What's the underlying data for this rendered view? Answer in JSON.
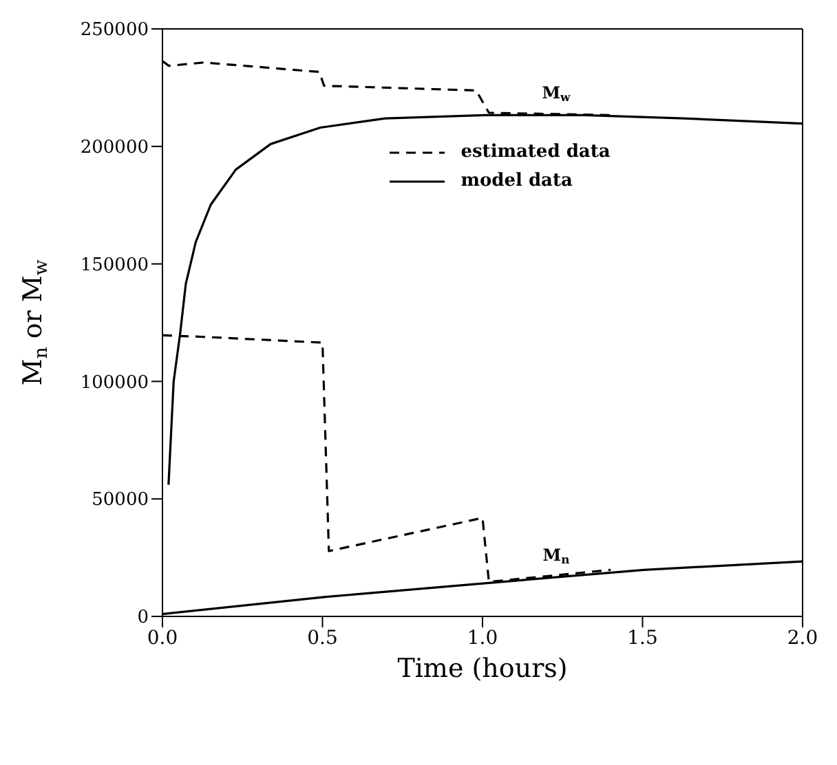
{
  "chart_data": {
    "type": "line",
    "xlabel": "Time (hours)",
    "ylabel": "M$_{n}$ or M$_{w}$",
    "xlim": [
      0,
      2
    ],
    "xticks": [
      {
        "value": 0,
        "label": "0.0"
      },
      {
        "value": 0.5,
        "label": "0.5"
      },
      {
        "value": 1,
        "label": "1.0"
      },
      {
        "value": 1.5,
        "label": "1.5"
      },
      {
        "value": 2,
        "label": "2.0"
      }
    ],
    "ylim": [
      0,
      250000
    ],
    "yticks": [
      0,
      50000,
      100000,
      150000,
      200000,
      250000
    ],
    "legend": "top",
    "marker": "none",
    "annotations": [
      {
        "text": "M$_{w}$",
        "x": 1.23,
        "y": 213300
      },
      {
        "text": "M$_{n}$",
        "x": 1.23,
        "y": 16650
      }
    ],
    "series": [
      {
        "name": "estimated data",
        "color": "#000000",
        "line_style": "dashed",
        "x": [
          0,
          0.02,
          0.13,
          0.49,
          0.505,
          0.98,
          1.02,
          1.4
        ],
        "values": [
          236300,
          234300,
          235700,
          231700,
          225800,
          223800,
          214300,
          213300
        ]
      },
      {
        "name": "model data",
        "color": "#000000",
        "line_style": "solid",
        "x": [
          0.019,
          0.035,
          0.055,
          0.073,
          0.104,
          0.151,
          0.229,
          0.338,
          0.493,
          0.696,
          1.007,
          1.318,
          1.63,
          2.0
        ],
        "values": [
          56000,
          100000,
          120000,
          141500,
          159300,
          175200,
          190100,
          201000,
          208000,
          211900,
          213300,
          213300,
          211900,
          209700
        ]
      },
      {
        "color": "#000000",
        "line_style": "dashed",
        "x": [
          0,
          0.12,
          0.5,
          0.52,
          1.0,
          1.02,
          1.4
        ],
        "values": [
          119600,
          119000,
          116500,
          27800,
          41900,
          14700,
          19800
        ]
      },
      {
        "color": "#000000",
        "line_style": "solid",
        "x": [
          0,
          0.51,
          1.007,
          1.505,
          2.0
        ],
        "values": [
          1000,
          8300,
          14100,
          19800,
          23400
        ]
      }
    ]
  }
}
